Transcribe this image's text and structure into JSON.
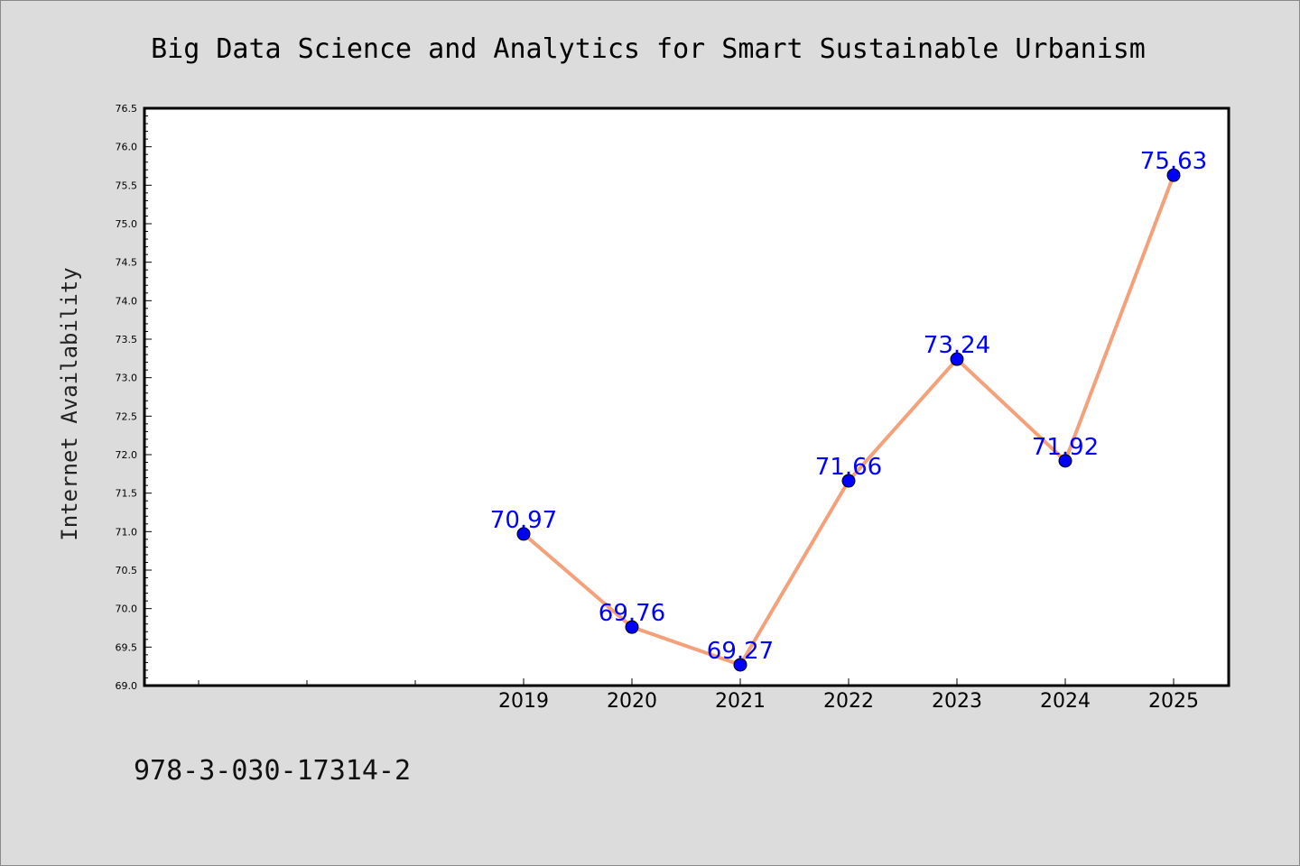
{
  "footer": {
    "code": "978-3-030-17314-2"
  },
  "colors": {
    "background": "#dcdcdc",
    "plot_background": "#ffffff",
    "line": "#f4a07a",
    "marker": "#0000ff",
    "data_label": "#0000ff"
  },
  "chart_data": {
    "type": "line",
    "title": "Big Data Science and Analytics for Smart Sustainable Urbanism",
    "xlabel": "",
    "ylabel": "Internet Availability",
    "ylim": [
      69.0,
      76.5
    ],
    "yticks": [
      "69.0",
      "69.5",
      "70.0",
      "70.5",
      "71.0",
      "71.5",
      "72.0",
      "72.5",
      "73.0",
      "73.5",
      "74.0",
      "74.5",
      "75.0",
      "75.5",
      "76.0",
      "76.5"
    ],
    "x": [
      "2019",
      "2020",
      "2021",
      "2022",
      "2023",
      "2024",
      "2025"
    ],
    "series": [
      {
        "values": [
          70.97,
          69.76,
          69.27,
          71.66,
          73.24,
          71.92,
          75.63
        ],
        "labels": [
          "70.97",
          "69.76",
          "69.27",
          "71.66",
          "73.24",
          "71.92",
          "75.63"
        ]
      }
    ],
    "grid": false,
    "legend": "none"
  }
}
